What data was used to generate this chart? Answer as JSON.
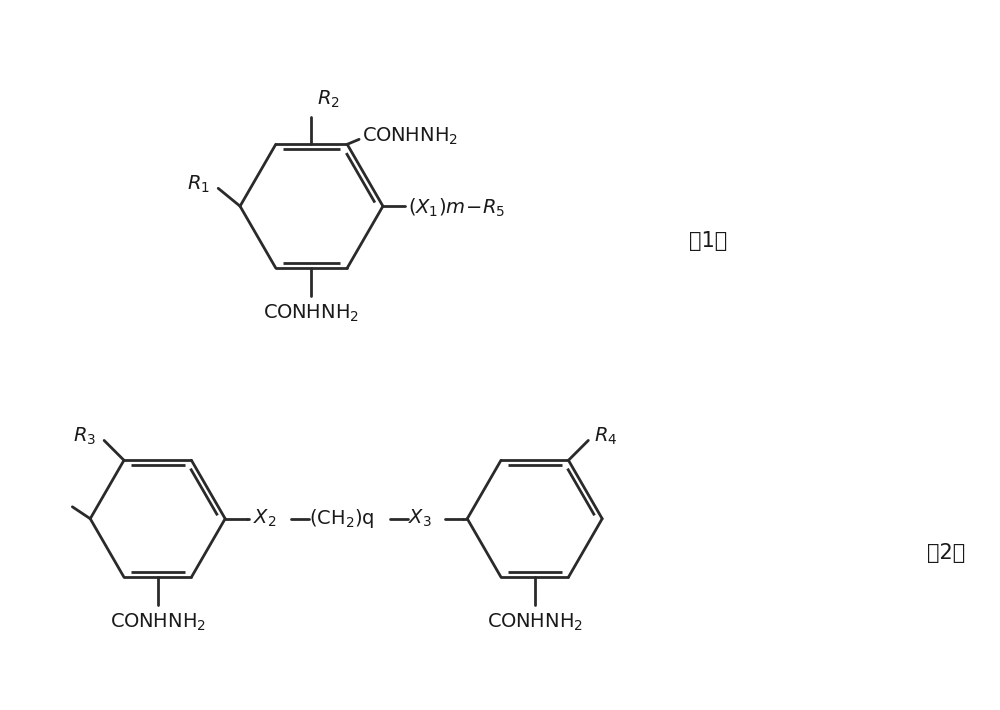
{
  "bg_color": "#ffffff",
  "line_color": "#2a2a2a",
  "text_color": "#1a1a1a",
  "lw": 2.0,
  "lw_thin": 1.6,
  "fontsize": 14,
  "fig_width": 10.0,
  "fig_height": 7.1
}
